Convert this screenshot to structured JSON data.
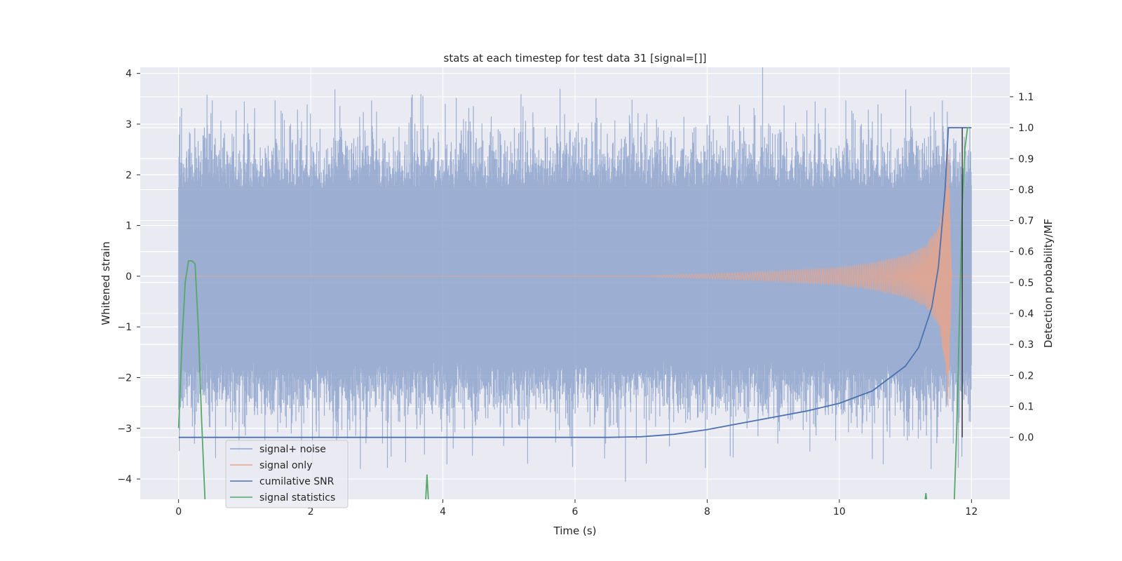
{
  "chart_data": {
    "type": "line",
    "title": "stats at each timestep for test data 31 [signal=[]]",
    "xlabel": "Time (s)",
    "ylabel_left": "Whitened strain",
    "ylabel_right": "Detection probability/MF",
    "xlim": [
      -0.58,
      12.58
    ],
    "ylim_left": [
      -4.4,
      4.12
    ],
    "ylim_right": [
      -0.2,
      1.195
    ],
    "x_ticks": [
      0,
      2,
      4,
      6,
      8,
      10,
      12
    ],
    "y_ticks_left": [
      -4,
      -3,
      -2,
      -1,
      0,
      1,
      2,
      3,
      4
    ],
    "y_ticks_right": [
      0.0,
      0.1,
      0.2,
      0.3,
      0.4,
      0.5,
      0.6,
      0.7,
      0.8,
      0.9,
      1.0,
      1.1
    ],
    "x_tick_labels": [
      "0",
      "2",
      "4",
      "6",
      "8",
      "10",
      "12"
    ],
    "y_tick_labels_left": [
      "−4",
      "−3",
      "−2",
      "−1",
      "0",
      "1",
      "2",
      "3",
      "4"
    ],
    "y_tick_labels_right": [
      "0.0",
      "0.1",
      "0.2",
      "0.3",
      "0.4",
      "0.5",
      "0.6",
      "0.7",
      "0.8",
      "0.9",
      "1.0",
      "1.1"
    ],
    "grid": true,
    "legend_placement": "lower-left",
    "series": [
      {
        "name": "signal+ noise",
        "axis": "left",
        "color": "#8EA4CC",
        "description_values": {
          "x_range": [
            0,
            12
          ],
          "core_amplitude": 1.7,
          "peak_max": 3.8,
          "peak_min": -4.1
        }
      },
      {
        "name": "signal only",
        "axis": "left",
        "color": "#E8A48C",
        "chirp_points": {
          "x": [
            0,
            7,
            8,
            9,
            10,
            10.5,
            11,
            11.3,
            11.5,
            11.6,
            11.65,
            11.7,
            12
          ],
          "envelope": [
            0.0,
            0.01,
            0.05,
            0.1,
            0.18,
            0.27,
            0.42,
            0.6,
            1.0,
            1.7,
            2.8,
            0,
            0
          ]
        }
      },
      {
        "name": "cumilative SNR",
        "axis": "right",
        "color": "#4C72B0",
        "x": [
          0,
          6.5,
          7.0,
          7.5,
          8.0,
          8.5,
          9.0,
          9.5,
          10.0,
          10.5,
          11.0,
          11.2,
          11.4,
          11.5,
          11.6,
          11.65,
          11.8,
          11.9,
          11.93,
          12.0
        ],
        "y": [
          0.0,
          0.0,
          0.002,
          0.01,
          0.025,
          0.045,
          0.065,
          0.085,
          0.11,
          0.15,
          0.23,
          0.29,
          0.42,
          0.55,
          0.8,
          1.0,
          1.0,
          1.0,
          1.0,
          1.0
        ]
      },
      {
        "name": "signal statistics",
        "axis": "right",
        "color": "#55A868",
        "segments": [
          {
            "x": [
              0.0,
              0.05,
              0.1,
              0.15,
              0.2,
              0.25,
              0.3,
              0.35,
              0.4
            ],
            "y": [
              0.03,
              0.3,
              0.5,
              0.57,
              0.57,
              0.56,
              0.35,
              0.05,
              -0.2
            ]
          },
          {
            "x": [
              3.74,
              3.76,
              3.78
            ],
            "y": [
              -0.2,
              -0.12,
              -0.2
            ]
          },
          {
            "x": [
              11.3,
              11.31,
              11.32
            ],
            "y": [
              -0.2,
              -0.18,
              -0.2
            ]
          },
          {
            "x": [
              11.74,
              11.78,
              11.82,
              11.86,
              11.9,
              11.94,
              11.97
            ],
            "y": [
              -0.2,
              0.05,
              0.4,
              0.75,
              0.93,
              1.0,
              1.0
            ]
          }
        ]
      }
    ],
    "annotations": [
      {
        "name": "black-vertical-marker",
        "x": 11.86,
        "y_right": [
          -0.0,
          1.0
        ]
      }
    ]
  },
  "colors": {
    "axes_bg": "#EAEAF2",
    "grid": "#FFFFFF",
    "text": "#262626"
  }
}
